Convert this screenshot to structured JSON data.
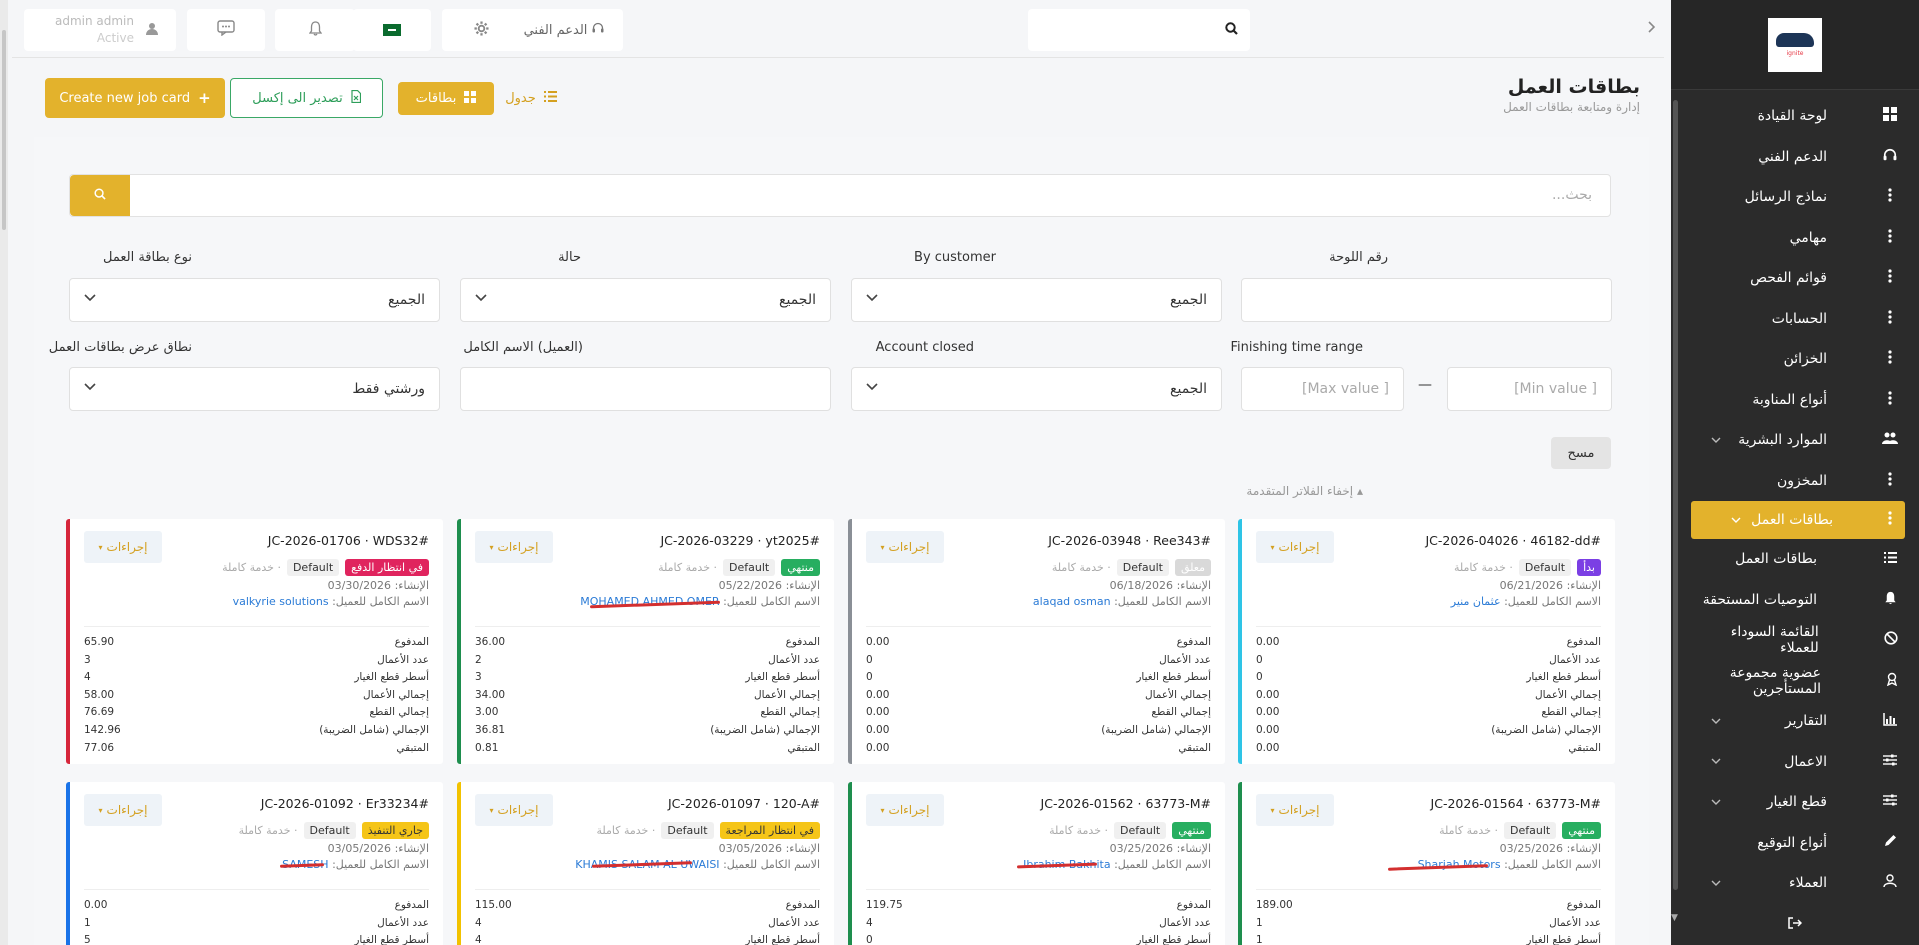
{
  "topbar": {
    "user_name": "admin admin",
    "user_status": "Active",
    "support_label": "الدعم الفني",
    "search_placeholder": ""
  },
  "sidebar": {
    "logo_text": "ignite",
    "items": [
      {
        "label": "لوحة القيادة",
        "icon": "dashboard-icon"
      },
      {
        "label": "الدعم الفني",
        "icon": "headset-icon"
      },
      {
        "label": "نماذج الرسائل",
        "icon": "dots-icon"
      },
      {
        "label": "مهامي",
        "icon": "dots-icon"
      },
      {
        "label": "قوائم الفحص",
        "icon": "dots-icon"
      },
      {
        "label": "الحسابات",
        "icon": "dots-icon"
      },
      {
        "label": "الخزائن",
        "icon": "dots-icon"
      },
      {
        "label": "أنواع المناوبة",
        "icon": "dots-icon"
      },
      {
        "label": "الموارد البشرية",
        "icon": "users-icon"
      },
      {
        "label": "المخزون",
        "icon": "dots-icon"
      },
      {
        "label": "بطاقات العمل",
        "icon": "dots-icon"
      },
      {
        "label": "بطاقات العمل",
        "icon": "list-icon"
      },
      {
        "label": "التوصيات المستحقة",
        "icon": "bell-icon"
      },
      {
        "label": "القائمة السوداء للعملاء",
        "icon": "ban-icon"
      },
      {
        "label": "عضوية مجموعة المستأجرين",
        "icon": "award-icon"
      },
      {
        "label": "التقارير",
        "icon": "chart-icon"
      },
      {
        "label": "الاعمال",
        "icon": "sliders-icon"
      },
      {
        "label": "قطع الغيار",
        "icon": "sliders-icon"
      },
      {
        "label": "أنواع التوقيع",
        "icon": "pen-icon"
      },
      {
        "label": "العملاء",
        "icon": "user-icon"
      }
    ]
  },
  "header": {
    "title": "بطاقات العمل",
    "subtitle": "إدارة ومتابعة بطاقات العمل",
    "create_label": "Create new job card",
    "excel_label": "تصدير الى إكسل",
    "cards_label": "بطاقات",
    "table_label": "جدول"
  },
  "filters": {
    "search_placeholder": "بحث...",
    "plate_label": "رقم اللوحة",
    "customer_label": "By customer",
    "customer_value": "الجميع",
    "status_label": "حالة",
    "status_value": "الجميع",
    "type_label": "نوع بطاقة العمل",
    "type_value": "الجميع",
    "finishing_label": "Finishing time range",
    "min_placeholder": "[Min value ]",
    "max_placeholder": "[Max value ]",
    "account_closed_label": "Account closed",
    "account_closed_value": "الجميع",
    "fullname_label": "(العميل) الاسم الكامل",
    "scope_label": "نطاق عرض بطاقات العمل",
    "scope_value": "ورشتي فقط",
    "clear_label": "مسح",
    "hide_label": "إخفاء الفلاتر المتقدمة"
  },
  "labels": {
    "created": "الإنشاء:",
    "customer": "الاسم الكامل للعميل:",
    "default": "Default",
    "service": "خدمة كاملة",
    "actions": "إجراءات",
    "paid": "المدفوع",
    "jobs_count": "عدد الأعمال",
    "parts_lines": "أسطر قطع الغيار",
    "jobs_total": "إجمالي الأعمال",
    "parts_total": "إجمالي القطع",
    "grand_total": "الإجمالي (شامل الضريبة)",
    "remaining": "المتبقي"
  },
  "cards": [
    {
      "code": "JC-2026-04026 · 46182-dd#",
      "status": "بدأ",
      "status_color": "#7b3fe4",
      "border": "#2ec4e6",
      "date": "06/21/2026",
      "customer": "عثمان منير",
      "stats": [
        "0.00",
        "0",
        "0",
        "0.00",
        "0.00",
        "0.00",
        "0.00"
      ]
    },
    {
      "code": "JC-2026-03948 · Ree343#",
      "status": "معلق",
      "status_color": "#d9d9d9",
      "border": "#8a8f96",
      "date": "06/18/2026",
      "customer": "alaqad osman",
      "stats": [
        "0.00",
        "0",
        "0",
        "0.00",
        "0.00",
        "0.00",
        "0.00"
      ]
    },
    {
      "code": "JC-2026-03229 · yt2025#",
      "status": "منتهي",
      "status_color": "#27ae60",
      "border": "#1e8e4e",
      "date": "05/22/2026",
      "customer": "MOHAMED AHMED OMER",
      "stats": [
        "36.00",
        "2",
        "3",
        "34.00",
        "3.00",
        "36.81",
        "0.81"
      ]
    },
    {
      "code": "JC-2026-01706 · WDS32#",
      "status": "في انتظار الدفع",
      "status_color": "#e0245e",
      "border": "#d6263b",
      "date": "03/30/2026",
      "customer": "valkyrie solutions",
      "stats": [
        "65.90",
        "3",
        "4",
        "58.00",
        "76.69",
        "142.96",
        "77.06"
      ]
    },
    {
      "code": "JC-2026-01564 · 63773-M#",
      "status": "منتهي",
      "status_color": "#27ae60",
      "border": "#1e8e4e",
      "date": "03/25/2026",
      "customer": "Sharjah Motors",
      "stats": [
        "189.00",
        "1",
        "1",
        "",
        "",
        "",
        ""
      ]
    },
    {
      "code": "JC-2026-01562 · 63773-M#",
      "status": "منتهي",
      "status_color": "#27ae60",
      "border": "#1e8e4e",
      "date": "03/25/2026",
      "customer": "Ibrahim Bakhita",
      "stats": [
        "119.75",
        "4",
        "0",
        "",
        "",
        "",
        ""
      ]
    },
    {
      "code": "JC-2026-01097 · 120-A#",
      "status": "في انتظار المراجعة",
      "status_color": "#f5c518",
      "border": "#f2c200",
      "date": "03/05/2026",
      "customer": "KHAMIS SALAM AL UWAISI",
      "stats": [
        "115.00",
        "4",
        "4",
        "",
        "",
        "",
        ""
      ]
    },
    {
      "code": "JC-2026-01092 · Er33234#",
      "status": "جاري التنفيذ",
      "status_color": "#f5c518",
      "border": "#1a73e8",
      "date": "03/05/2026",
      "customer": "SAMESH",
      "stats": [
        "0.00",
        "1",
        "5",
        "",
        "",
        "",
        ""
      ]
    }
  ]
}
